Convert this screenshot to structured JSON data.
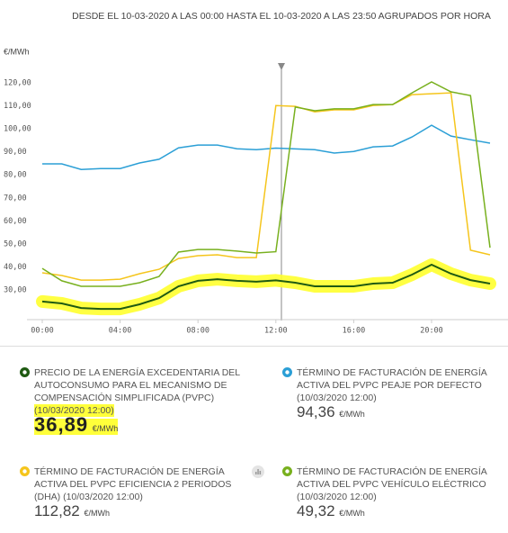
{
  "chart_data": {
    "type": "line",
    "title": "DESDE EL 10-03-2020 A LAS 00:00 HASTA EL 10-03-2020 A LAS 23:50 AGRUPADOS POR HORA",
    "y_label": "€/MWh",
    "categories": [
      "00:00",
      null,
      null,
      null,
      "04:00",
      null,
      null,
      null,
      "08:00",
      null,
      null,
      null,
      "12:00",
      null,
      null,
      null,
      "16:00",
      null,
      null,
      null,
      "20:00",
      null,
      null,
      null
    ],
    "ylim": [
      20,
      130
    ],
    "yticks": [
      {
        "value": 30,
        "label": "30,00"
      },
      {
        "value": 40,
        "label": "40,00"
      },
      {
        "value": 50,
        "label": "50,00"
      },
      {
        "value": 60,
        "label": "60,00"
      },
      {
        "value": 70,
        "label": "70,00"
      },
      {
        "value": 80,
        "label": "80,00"
      },
      {
        "value": 90,
        "label": "90,00"
      },
      {
        "value": 100,
        "label": "100,00"
      },
      {
        "value": 110,
        "label": "110,00"
      },
      {
        "value": 120,
        "label": "120,00"
      }
    ],
    "grid": false,
    "series": [
      {
        "name": "PRECIO DE LA ENERGÍA EXCEDENTARIA DEL AUTOCONSUMO PARA EL MECANISMO DE COMPENSACIÓN SIMPLIFICADA (PVPC)",
        "color": "#1f5a12",
        "values": [
          27.7,
          26.9,
          24.9,
          24.5,
          24.5,
          26.5,
          29.2,
          34.3,
          36.7,
          37.4,
          36.7,
          36.3,
          36.89,
          35.9,
          34.3,
          34.3,
          34.3,
          35.5,
          35.9,
          39.4,
          43.7,
          39.8,
          37.0,
          35.5
        ]
      },
      {
        "name": "TÉRMINO DE FACTURACIÓN DE ENERGÍA ACTIVA DEL PVPC PEAJE POR DEFECTO",
        "color": "#2b9fd6",
        "values": [
          87.5,
          87.5,
          85.1,
          85.5,
          85.5,
          87.9,
          89.5,
          94.5,
          95.7,
          95.7,
          94.1,
          93.7,
          94.36,
          94.0,
          93.7,
          92.2,
          92.9,
          94.9,
          95.3,
          99.2,
          104.3,
          99.6,
          98.0,
          96.5
        ]
      },
      {
        "name": "TÉRMINO DE FACTURACIÓN DE ENERGÍA ACTIVA DEL PVPC EFICIENCIA 2 PERIODOS (DHA)",
        "color": "#f5c51c",
        "values": [
          40.2,
          39.0,
          37.0,
          37.0,
          37.4,
          39.8,
          41.7,
          46.4,
          47.6,
          48.0,
          46.8,
          46.8,
          112.82,
          112.5,
          110.1,
          111.0,
          111.0,
          112.9,
          113.3,
          117.6,
          118.0,
          118.4,
          50.0,
          48.0
        ]
      },
      {
        "name": "TÉRMINO DE FACTURACIÓN DE ENERGÍA ACTIVA DEL PVPC VEHÍCULO ELÉCTRICO",
        "color": "#78b01e",
        "values": [
          42.1,
          36.7,
          34.3,
          34.3,
          34.3,
          35.9,
          38.6,
          49.2,
          50.3,
          50.3,
          49.6,
          48.8,
          49.32,
          112.2,
          110.6,
          111.4,
          111.4,
          113.3,
          113.3,
          118.4,
          123.1,
          118.8,
          117.2,
          51.1
        ]
      }
    ],
    "readouts": [
      {
        "date": "(10/03/2020 12:00)",
        "value": "36,89",
        "unit": "€/MWh"
      },
      {
        "date": "(10/03/2020 12:00)",
        "value": "94,36",
        "unit": "€/MWh"
      },
      {
        "date": "(10/03/2020 12:00)",
        "value": "112,82",
        "unit": "€/MWh"
      },
      {
        "date": "(10/03/2020 12:00)",
        "value": "49,32",
        "unit": "€/MWh"
      }
    ]
  }
}
